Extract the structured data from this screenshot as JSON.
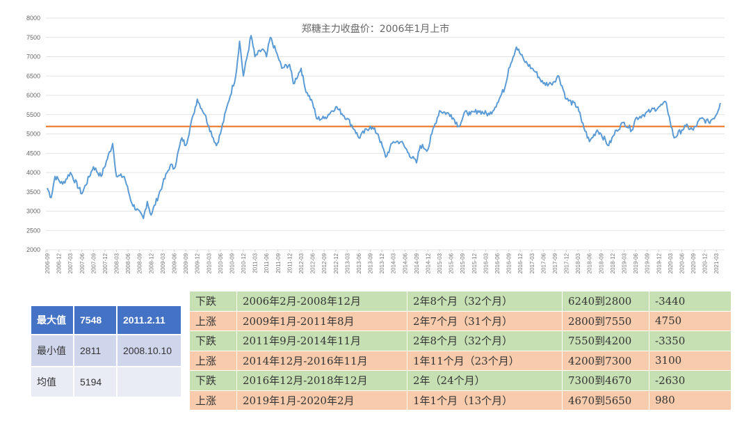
{
  "chart_data": {
    "type": "line",
    "title": "郑糖主力收盘价：2006年1月上市",
    "xlabel": "",
    "ylabel": "",
    "ylim": [
      2000,
      8000
    ],
    "yticks": [
      2000,
      2500,
      3000,
      3500,
      4000,
      4500,
      5000,
      5500,
      6000,
      6500,
      7000,
      7500,
      8000
    ],
    "xtick_labels": [
      "2006-09",
      "2006-12",
      "2007-03",
      "2007-06",
      "2007-09",
      "2007-12",
      "2008-03",
      "2008-06",
      "2008-09",
      "2008-12",
      "2009-03",
      "2009-06",
      "2009-09",
      "2009-12",
      "2010-03",
      "2010-06",
      "2010-09",
      "2010-12",
      "2011-03",
      "2011-06",
      "2011-09",
      "2011-12",
      "2012-03",
      "2012-06",
      "2012-09",
      "2012-12",
      "2013-03",
      "2013-06",
      "2013-09",
      "2013-12",
      "2014-03",
      "2014-06",
      "2014-09",
      "2014-12",
      "2015-03",
      "2015-06",
      "2015-09",
      "2015-12",
      "2016-03",
      "2016-06",
      "2016-09",
      "2016-12",
      "2017-03",
      "2017-06",
      "2017-09",
      "2017-12",
      "2018-03",
      "2018-06",
      "2018-09",
      "2018-12",
      "2019-03",
      "2019-06",
      "2019-09",
      "2019-12",
      "2020-03",
      "2020-06",
      "2020-09",
      "2020-12",
      "2021-03"
    ],
    "grid": true,
    "series": [
      {
        "color": "#5B9BD5",
        "x": [
          "2006-09",
          "2006-10",
          "2006-11",
          "2007-01",
          "2007-03",
          "2007-06",
          "2007-09",
          "2007-11",
          "2008-02",
          "2008-03",
          "2008-05",
          "2008-07",
          "2008-10",
          "2008-11",
          "2008-12",
          "2009-03",
          "2009-05",
          "2009-06",
          "2009-08",
          "2009-09",
          "2009-11",
          "2009-12",
          "2010-02",
          "2010-03",
          "2010-05",
          "2010-06",
          "2010-08",
          "2010-10",
          "2010-11",
          "2010-12",
          "2011-02",
          "2011-03",
          "2011-05",
          "2011-06",
          "2011-07",
          "2011-09",
          "2011-10",
          "2011-12",
          "2012-01",
          "2012-03",
          "2012-04",
          "2012-06",
          "2012-07",
          "2012-09",
          "2012-12",
          "2013-03",
          "2013-05",
          "2013-06",
          "2013-09",
          "2013-11",
          "2014-01",
          "2014-03",
          "2014-05",
          "2014-07",
          "2014-09",
          "2014-10",
          "2014-12",
          "2015-01",
          "2015-03",
          "2015-06",
          "2015-08",
          "2015-10",
          "2015-11",
          "2016-01",
          "2016-04",
          "2016-06",
          "2016-08",
          "2016-09",
          "2016-11",
          "2017-01",
          "2017-03",
          "2017-04",
          "2017-06",
          "2017-08",
          "2017-10",
          "2017-12",
          "2018-03",
          "2018-04",
          "2018-06",
          "2018-08",
          "2018-09",
          "2018-11",
          "2019-01",
          "2019-03",
          "2019-05",
          "2019-06",
          "2019-08",
          "2019-10",
          "2019-12",
          "2020-02",
          "2020-03",
          "2020-04",
          "2020-06",
          "2020-07",
          "2020-09",
          "2020-11",
          "2021-01",
          "2021-03",
          "2021-04"
        ],
        "y": [
          3600,
          3350,
          3900,
          3700,
          4000,
          3450,
          4150,
          3900,
          4750,
          3900,
          3900,
          3200,
          2811,
          3250,
          2900,
          3700,
          4200,
          4100,
          4900,
          4700,
          5500,
          5900,
          5500,
          5200,
          4700,
          5000,
          5800,
          6500,
          7400,
          6500,
          7548,
          7000,
          7200,
          7000,
          7500,
          7000,
          6700,
          6800,
          6300,
          6700,
          6200,
          5800,
          5400,
          5400,
          5700,
          5400,
          5100,
          4900,
          5200,
          5000,
          4400,
          4800,
          4800,
          4500,
          4250,
          4700,
          4600,
          5000,
          5600,
          5500,
          5200,
          5600,
          5500,
          5600,
          5500,
          5800,
          6200,
          6700,
          7250,
          6900,
          6700,
          6600,
          6300,
          6300,
          6500,
          5900,
          5700,
          5300,
          4800,
          5100,
          5000,
          4700,
          5100,
          5300,
          5100,
          5400,
          5500,
          5600,
          5700,
          5800,
          5300,
          4900,
          5100,
          5200,
          5100,
          5400,
          5300,
          5500,
          5800
        ]
      },
      {
        "color": "#ED7D31",
        "constant": 5194
      }
    ]
  },
  "stats_table": {
    "rows": [
      [
        "最大值",
        "7548",
        "2011.2.11"
      ],
      [
        "最小值",
        "2811",
        "2008.10.10"
      ],
      [
        "均值",
        "5194",
        ""
      ]
    ],
    "header_color": "#4472C4"
  },
  "period_table": {
    "colors": {
      "down": "#C6E0B4",
      "up": "#F8CBAD"
    },
    "rows": [
      {
        "type": "down",
        "cells": [
          "下跌",
          "2006年2月-2008年12月",
          "2年8个月（32个月）",
          "6240到2800",
          "-3440"
        ]
      },
      {
        "type": "up",
        "cells": [
          "上涨",
          "2009年1月-2011年8月",
          "2年7个月（31个月）",
          "2800到7550",
          "4750"
        ]
      },
      {
        "type": "down",
        "cells": [
          "下跌",
          "2011年9月-2014年11月",
          "2年8个月（32个月）",
          "7550到4200",
          "-3350"
        ]
      },
      {
        "type": "up",
        "cells": [
          "上涨",
          "2014年12月-2016年11月",
          "1年11个月（23个月）",
          "4200到7300",
          "3100"
        ]
      },
      {
        "type": "down",
        "cells": [
          "下跌",
          "2016年12月-2018年12月",
          "2年（24个月）",
          "7300到4670",
          "-2630"
        ]
      },
      {
        "type": "up",
        "cells": [
          "上涨",
          "2019年1月-2020年2月",
          "1年1个月（13个月）",
          "4670到5650",
          "980"
        ]
      }
    ]
  }
}
